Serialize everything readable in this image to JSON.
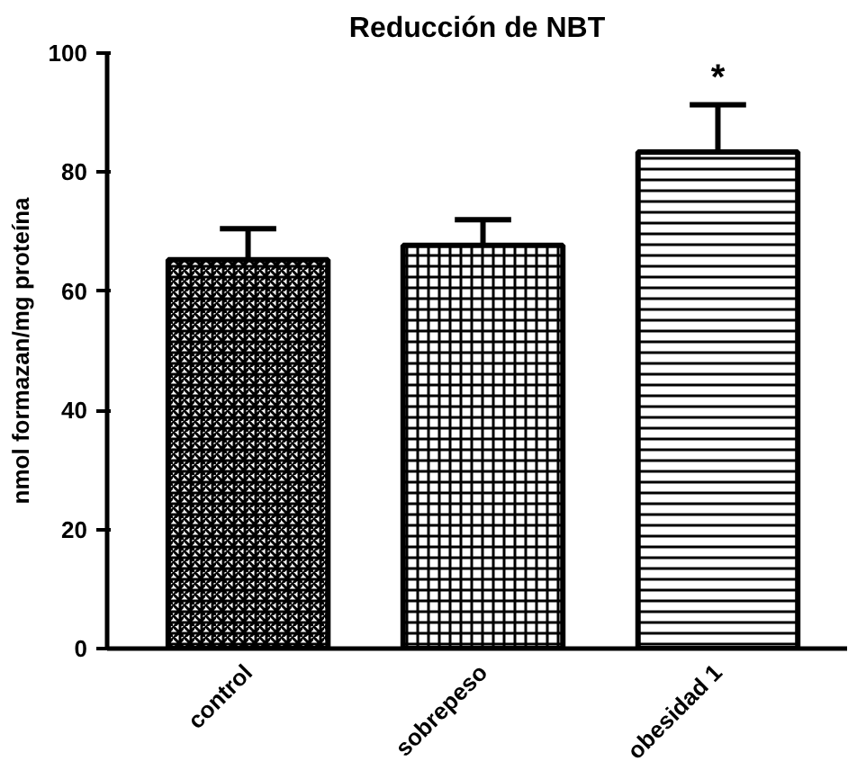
{
  "chart_data": {
    "type": "bar",
    "title": "Reducción de NBT",
    "ylabel": "nmol formazan/mg proteína",
    "categories": [
      "control",
      "sobrepeso",
      "obesidad 1"
    ],
    "values": [
      65.3,
      67.7,
      83.4
    ],
    "errors": [
      5.2,
      4.3,
      7.9
    ],
    "colors": [
      "#000000",
      "#000000",
      "#000000"
    ],
    "ylim": [
      0,
      100
    ],
    "yticks": [
      0,
      20,
      40,
      60,
      80,
      100
    ],
    "annotations": [
      "*"
    ],
    "grid": false
  }
}
